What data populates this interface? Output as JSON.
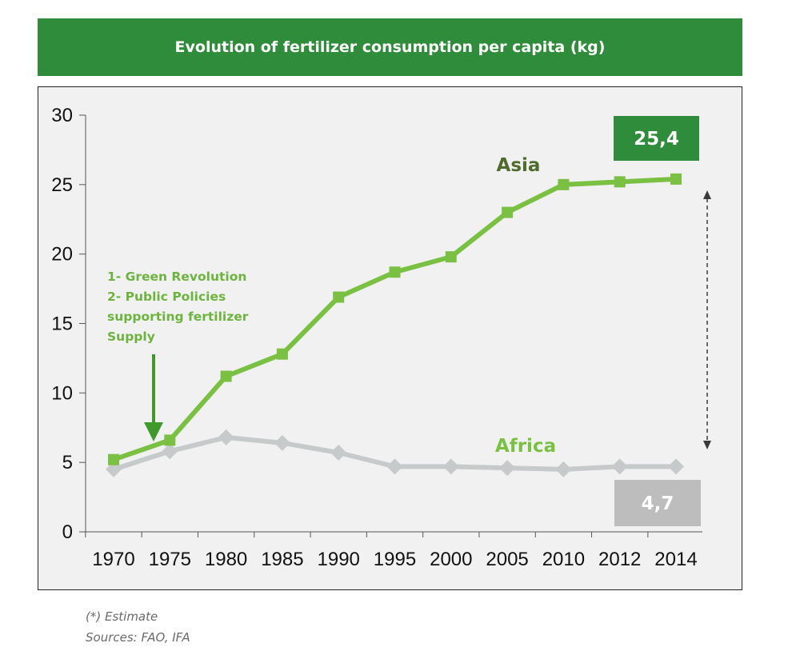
{
  "chart_data": {
    "type": "line",
    "title": "Evolution of fertilizer consumption per capita (kg)",
    "categories": [
      "1970",
      "1975",
      "1980",
      "1985",
      "1990",
      "1995",
      "2000",
      "2005",
      "2010",
      "2012",
      "2014"
    ],
    "yticks": [
      "0",
      "5",
      "10",
      "15",
      "20",
      "25",
      "30"
    ],
    "ylim": [
      0,
      30
    ],
    "xlabel": "",
    "ylabel": "",
    "grid": false,
    "series": [
      {
        "name": "Asia",
        "color": "#7ac143",
        "marker": "square",
        "values": [
          5.2,
          6.6,
          11.2,
          12.8,
          16.9,
          18.7,
          19.8,
          23.0,
          25.0,
          25.2,
          25.4
        ]
      },
      {
        "name": "Africa",
        "color": "#c6cacb",
        "marker": "diamond",
        "values": [
          4.5,
          5.8,
          6.8,
          6.4,
          5.7,
          4.7,
          4.7,
          4.6,
          4.5,
          4.7,
          4.7
        ]
      }
    ],
    "series_label_colors": {
      "Asia": "#4f6b2d",
      "Africa": "#7ac143"
    },
    "end_labels": [
      {
        "text": "25,4",
        "bg": "#2f8c3a"
      },
      {
        "text": "4,7",
        "bg": "#bdbdbd"
      }
    ],
    "annotation": {
      "lines": [
        "1- Green Revolution",
        "2- Public Policies",
        "supporting fertilizer",
        "Supply"
      ],
      "arrow_color": "#3f9a2b"
    }
  },
  "footnotes": {
    "estimate": "(*) Estimate",
    "sources": "Sources: FAO, IFA"
  }
}
